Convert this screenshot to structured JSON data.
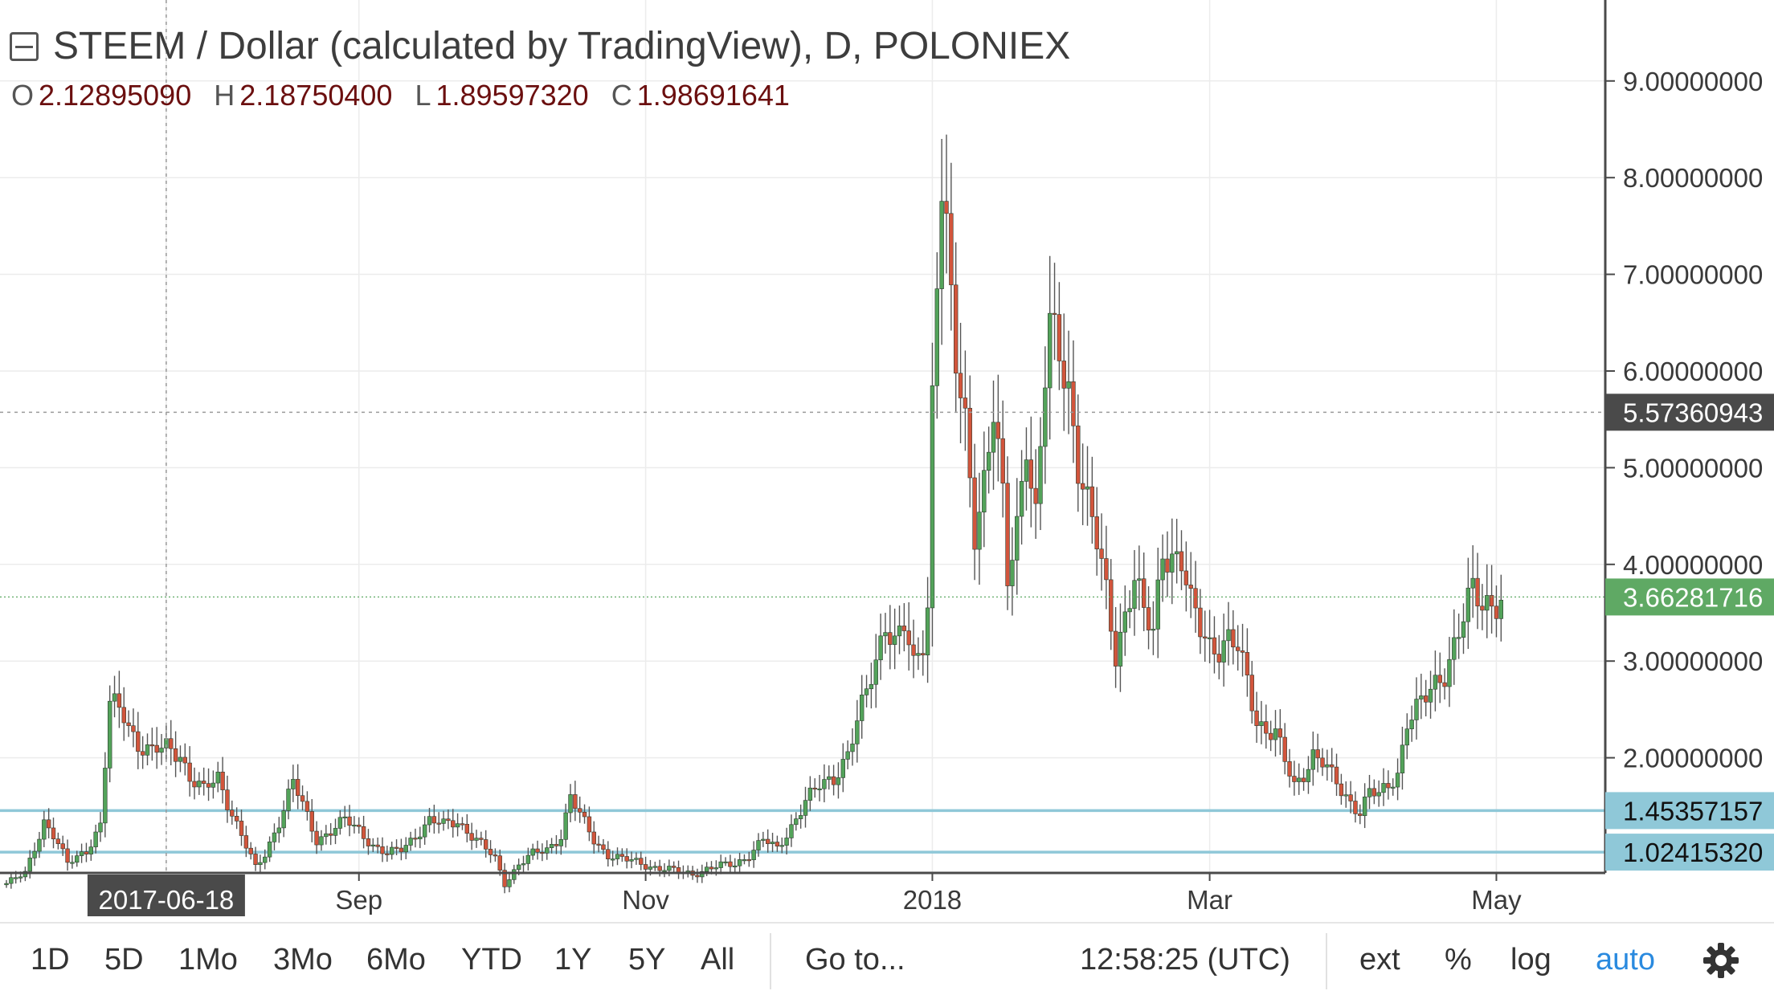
{
  "header": {
    "title": "STEEM / Dollar (calculated by TradingView), D, POLONIEX",
    "ohlc": [
      {
        "key": "O",
        "value": "2.12895090"
      },
      {
        "key": "H",
        "value": "2.18750400"
      },
      {
        "key": "L",
        "value": "1.89597320"
      },
      {
        "key": "C",
        "value": "1.98691641"
      }
    ]
  },
  "chart_data": {
    "type": "candlestick",
    "ylim": [
      0,
      9.3
    ],
    "y_ticks": [
      {
        "value": 9,
        "label": "9.00000000"
      },
      {
        "value": 8,
        "label": "8.00000000"
      },
      {
        "value": 7,
        "label": "7.00000000"
      },
      {
        "value": 6,
        "label": "6.00000000"
      },
      {
        "value": 5,
        "label": "5.00000000"
      },
      {
        "value": 4,
        "label": "4.00000000"
      },
      {
        "value": 3,
        "label": "3.00000000"
      },
      {
        "value": 2,
        "label": "2.00000000"
      }
    ],
    "x_ticks": [
      {
        "label": "Sep",
        "index": 75
      },
      {
        "label": "Nov",
        "index": 136
      },
      {
        "label": "2018",
        "index": 197
      },
      {
        "label": "Mar",
        "index": 256
      },
      {
        "label": "May",
        "index": 317
      }
    ],
    "crosshair": {
      "index": 34,
      "label": "2017-06-18",
      "price": 5.57360943,
      "price_label": "5.57360943"
    },
    "last_price": {
      "value": 3.66281716,
      "label": "3.66281716"
    },
    "horizontal_lines": [
      {
        "value": 1.45357157,
        "label": "1.45357157"
      },
      {
        "value": 1.0241532,
        "label": "1.02415320"
      }
    ],
    "colors": {
      "up": "#53a35a",
      "down": "#d2553c",
      "wick": "#555555",
      "hline": "#8fc8d8",
      "last": "#5fa964",
      "crosshair_label": "#4a4a4a",
      "grid": "#ececec"
    },
    "close_keypoints": [
      [
        0,
        0.7
      ],
      [
        4,
        0.8
      ],
      [
        8,
        1.35
      ],
      [
        10,
        1.2
      ],
      [
        13,
        0.9
      ],
      [
        17,
        1.05
      ],
      [
        20,
        1.3
      ],
      [
        22,
        2.55
      ],
      [
        25,
        2.45
      ],
      [
        28,
        2.15
      ],
      [
        31,
        2.05
      ],
      [
        34,
        2.1
      ],
      [
        37,
        2.05
      ],
      [
        39,
        1.8
      ],
      [
        42,
        1.65
      ],
      [
        45,
        1.8
      ],
      [
        47,
        1.55
      ],
      [
        50,
        1.2
      ],
      [
        53,
        0.85
      ],
      [
        55,
        1.0
      ],
      [
        58,
        1.35
      ],
      [
        61,
        1.75
      ],
      [
        63,
        1.5
      ],
      [
        66,
        1.15
      ],
      [
        69,
        1.25
      ],
      [
        72,
        1.35
      ],
      [
        75,
        1.25
      ],
      [
        78,
        1.1
      ],
      [
        81,
        1.0
      ],
      [
        84,
        1.05
      ],
      [
        87,
        1.2
      ],
      [
        90,
        1.35
      ],
      [
        93,
        1.3
      ],
      [
        96,
        1.35
      ],
      [
        99,
        1.2
      ],
      [
        102,
        1.05
      ],
      [
        104,
        0.95
      ],
      [
        106,
        0.7
      ],
      [
        109,
        0.9
      ],
      [
        112,
        1.0
      ],
      [
        115,
        1.05
      ],
      [
        118,
        1.2
      ],
      [
        120,
        1.6
      ],
      [
        122,
        1.4
      ],
      [
        125,
        1.15
      ],
      [
        128,
        1.0
      ],
      [
        131,
        0.95
      ],
      [
        134,
        0.92
      ],
      [
        137,
        0.88
      ],
      [
        140,
        0.85
      ],
      [
        143,
        0.82
      ],
      [
        146,
        0.8
      ],
      [
        149,
        0.85
      ],
      [
        152,
        0.88
      ],
      [
        155,
        0.9
      ],
      [
        158,
        1.0
      ],
      [
        161,
        1.15
      ],
      [
        164,
        1.05
      ],
      [
        167,
        1.3
      ],
      [
        170,
        1.55
      ],
      [
        173,
        1.7
      ],
      [
        176,
        1.8
      ],
      [
        179,
        2.05
      ],
      [
        182,
        2.5
      ],
      [
        185,
        3.0
      ],
      [
        187,
        3.45
      ],
      [
        189,
        3.2
      ],
      [
        191,
        3.35
      ],
      [
        193,
        2.9
      ],
      [
        195,
        3.2
      ],
      [
        196,
        3.6
      ],
      [
        197,
        5.8
      ],
      [
        198,
        7.1
      ],
      [
        199,
        8.05
      ],
      [
        200,
        7.4
      ],
      [
        201,
        6.6
      ],
      [
        202,
        6.0
      ],
      [
        204,
        5.4
      ],
      [
        206,
        4.4
      ],
      [
        208,
        4.9
      ],
      [
        210,
        5.6
      ],
      [
        212,
        4.6
      ],
      [
        213,
        3.8
      ],
      [
        215,
        4.4
      ],
      [
        217,
        5.4
      ],
      [
        218,
        4.9
      ],
      [
        219,
        4.5
      ],
      [
        221,
        5.9
      ],
      [
        222,
        6.35
      ],
      [
        224,
        6.2
      ],
      [
        226,
        5.85
      ],
      [
        228,
        5.1
      ],
      [
        230,
        4.6
      ],
      [
        232,
        4.2
      ],
      [
        234,
        3.7
      ],
      [
        236,
        3.1
      ],
      [
        238,
        3.5
      ],
      [
        240,
        3.85
      ],
      [
        242,
        3.45
      ],
      [
        244,
        3.3
      ],
      [
        246,
        4.2
      ],
      [
        248,
        4.1
      ],
      [
        250,
        4.0
      ],
      [
        252,
        3.55
      ],
      [
        254,
        3.35
      ],
      [
        256,
        3.2
      ],
      [
        258,
        3.15
      ],
      [
        260,
        3.2
      ],
      [
        262,
        3.1
      ],
      [
        264,
        2.8
      ],
      [
        266,
        2.4
      ],
      [
        268,
        2.3
      ],
      [
        270,
        2.25
      ],
      [
        272,
        1.95
      ],
      [
        274,
        1.7
      ],
      [
        276,
        1.85
      ],
      [
        278,
        2.05
      ],
      [
        280,
        1.95
      ],
      [
        282,
        1.8
      ],
      [
        284,
        1.65
      ],
      [
        286,
        1.55
      ],
      [
        288,
        1.45
      ],
      [
        290,
        1.65
      ],
      [
        292,
        1.6
      ],
      [
        294,
        1.7
      ],
      [
        296,
        1.85
      ],
      [
        298,
        2.4
      ],
      [
        300,
        2.5
      ],
      [
        302,
        2.6
      ],
      [
        304,
        2.75
      ],
      [
        306,
        2.9
      ],
      [
        308,
        3.2
      ],
      [
        310,
        3.45
      ],
      [
        312,
        3.7
      ],
      [
        314,
        3.55
      ],
      [
        316,
        3.65
      ],
      [
        318,
        3.66
      ]
    ]
  },
  "toolbar": {
    "ranges": [
      "1D",
      "5D",
      "1Mo",
      "3Mo",
      "6Mo",
      "YTD",
      "1Y",
      "5Y",
      "All"
    ],
    "goto": "Go to...",
    "clock": "12:58:25 (UTC)",
    "ext": "ext",
    "percent": "%",
    "log": "log",
    "auto": "auto",
    "settings_icon": "gear-icon"
  }
}
